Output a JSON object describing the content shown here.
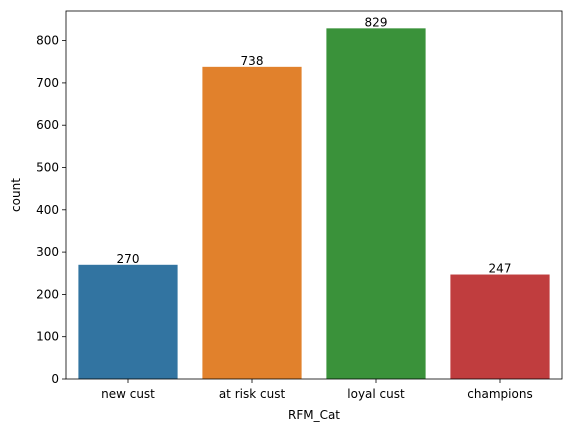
{
  "chart_data": {
    "type": "bar",
    "categories": [
      "new cust",
      "at risk cust",
      "loyal cust",
      "champions"
    ],
    "values": [
      270,
      738,
      829,
      247
    ],
    "data_labels": [
      "270",
      "738",
      "829",
      "247"
    ],
    "colors": [
      "#3274a1",
      "#e1812c",
      "#3a923a",
      "#c03d3e"
    ],
    "xlabel": "RFM_Cat",
    "ylabel": "count",
    "ylim": [
      0,
      870
    ],
    "yticks": [
      0,
      100,
      200,
      300,
      400,
      500,
      600,
      700,
      800
    ],
    "grid": false,
    "legend": "none"
  }
}
